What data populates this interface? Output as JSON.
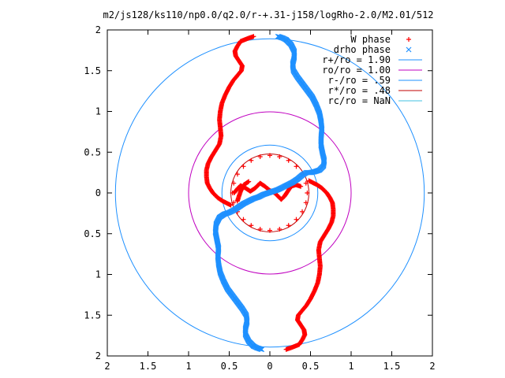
{
  "chart_data": {
    "type": "scatter",
    "title": "m2/js128/ks110/np0.0/q2.0/r-+.31-j158/logRho-2.0/M2.01/512",
    "xlabel": "",
    "ylabel": "",
    "xlim": [
      -2,
      2
    ],
    "ylim": [
      -2,
      2
    ],
    "x_ticks": [
      {
        "value": -2,
        "label": "2"
      },
      {
        "value": -1.5,
        "label": "1.5"
      },
      {
        "value": -1,
        "label": "1"
      },
      {
        "value": -0.5,
        "label": "0.5"
      },
      {
        "value": 0,
        "label": "0"
      },
      {
        "value": 0.5,
        "label": "0.5"
      },
      {
        "value": 1,
        "label": "1"
      },
      {
        "value": 1.5,
        "label": "1.5"
      },
      {
        "value": 2,
        "label": "2"
      }
    ],
    "y_ticks": [
      {
        "value": 2,
        "label": "2"
      },
      {
        "value": 1.5,
        "label": "1.5"
      },
      {
        "value": 1,
        "label": "1"
      },
      {
        "value": 0.5,
        "label": "0.5"
      },
      {
        "value": 0,
        "label": "0"
      },
      {
        "value": -0.5,
        "label": "0.5"
      },
      {
        "value": -1,
        "label": "1"
      },
      {
        "value": -1.5,
        "label": "1.5"
      },
      {
        "value": -2,
        "label": "2"
      }
    ],
    "grid": false,
    "legend_position": "top-right",
    "series": [
      {
        "name": "W phase",
        "marker": "plus",
        "color": "#ff0000",
        "arms": [
          [
            [
              0.36,
              -1.86
            ],
            [
              0.4,
              -1.8
            ],
            [
              0.43,
              -1.74
            ],
            [
              0.42,
              -1.68
            ],
            [
              0.38,
              -1.62
            ],
            [
              0.34,
              -1.56
            ],
            [
              0.35,
              -1.5
            ],
            [
              0.4,
              -1.44
            ],
            [
              0.45,
              -1.38
            ],
            [
              0.5,
              -1.3
            ],
            [
              0.55,
              -1.2
            ],
            [
              0.59,
              -1.1
            ],
            [
              0.61,
              -1.0
            ],
            [
              0.62,
              -0.9
            ],
            [
              0.61,
              -0.8
            ],
            [
              0.6,
              -0.7
            ],
            [
              0.62,
              -0.6
            ],
            [
              0.67,
              -0.52
            ],
            [
              0.72,
              -0.44
            ],
            [
              0.76,
              -0.36
            ],
            [
              0.78,
              -0.28
            ],
            [
              0.78,
              -0.2
            ],
            [
              0.77,
              -0.12
            ],
            [
              0.74,
              -0.06
            ],
            [
              0.7,
              0.0
            ],
            [
              0.64,
              0.06
            ],
            [
              0.58,
              0.1
            ],
            [
              0.52,
              0.13
            ],
            [
              0.48,
              0.15
            ]
          ],
          [
            [
              -0.36,
              1.86
            ],
            [
              -0.4,
              1.8
            ],
            [
              -0.43,
              1.74
            ],
            [
              -0.42,
              1.68
            ],
            [
              -0.38,
              1.62
            ],
            [
              -0.34,
              1.56
            ],
            [
              -0.35,
              1.5
            ],
            [
              -0.4,
              1.44
            ],
            [
              -0.45,
              1.38
            ],
            [
              -0.5,
              1.3
            ],
            [
              -0.55,
              1.2
            ],
            [
              -0.59,
              1.1
            ],
            [
              -0.61,
              1.0
            ],
            [
              -0.62,
              0.9
            ],
            [
              -0.61,
              0.8
            ],
            [
              -0.6,
              0.7
            ],
            [
              -0.62,
              0.6
            ],
            [
              -0.67,
              0.52
            ],
            [
              -0.72,
              0.44
            ],
            [
              -0.76,
              0.36
            ],
            [
              -0.78,
              0.28
            ],
            [
              -0.78,
              0.2
            ],
            [
              -0.77,
              0.12
            ],
            [
              -0.74,
              0.06
            ],
            [
              -0.7,
              0.0
            ],
            [
              -0.64,
              -0.06
            ],
            [
              -0.58,
              -0.1
            ],
            [
              -0.52,
              -0.13
            ],
            [
              -0.48,
              -0.15
            ]
          ],
          [
            [
              0.2,
              -1.92
            ],
            [
              0.26,
              -1.9
            ],
            [
              0.31,
              -1.88
            ],
            [
              0.36,
              -1.86
            ]
          ],
          [
            [
              -0.2,
              1.92
            ],
            [
              -0.26,
              1.9
            ],
            [
              -0.31,
              1.88
            ],
            [
              -0.36,
              1.86
            ]
          ],
          [
            [
              -0.44,
              0.0
            ],
            [
              -0.4,
              0.05
            ],
            [
              -0.36,
              0.09
            ],
            [
              -0.3,
              0.06
            ],
            [
              -0.24,
              0.02
            ],
            [
              -0.18,
              0.06
            ],
            [
              -0.12,
              0.12
            ],
            [
              -0.06,
              0.08
            ],
            [
              0.0,
              0.03
            ],
            [
              0.06,
              0.0
            ],
            [
              0.1,
              -0.04
            ],
            [
              0.14,
              -0.08
            ],
            [
              0.18,
              -0.04
            ],
            [
              0.22,
              0.02
            ],
            [
              0.26,
              0.08
            ],
            [
              0.32,
              0.1
            ],
            [
              0.38,
              0.08
            ]
          ],
          [
            [
              -0.4,
              -0.1
            ],
            [
              -0.36,
              0.02
            ],
            [
              -0.32,
              0.1
            ],
            [
              -0.26,
              0.14
            ]
          ]
        ],
        "ring": {
          "r": 0.46,
          "points": 24
        }
      },
      {
        "name": "drho phase",
        "marker": "cross",
        "color": "#1e90ff",
        "arms": [
          [
            [
              0.2,
              1.88
            ],
            [
              0.26,
              1.82
            ],
            [
              0.3,
              1.74
            ],
            [
              0.3,
              1.66
            ],
            [
              0.28,
              1.58
            ],
            [
              0.29,
              1.5
            ],
            [
              0.34,
              1.42
            ],
            [
              0.4,
              1.34
            ],
            [
              0.46,
              1.26
            ],
            [
              0.52,
              1.18
            ],
            [
              0.57,
              1.08
            ],
            [
              0.61,
              0.98
            ],
            [
              0.63,
              0.88
            ],
            [
              0.64,
              0.78
            ],
            [
              0.63,
              0.68
            ],
            [
              0.63,
              0.58
            ],
            [
              0.65,
              0.48
            ],
            [
              0.67,
              0.4
            ],
            [
              0.66,
              0.33
            ],
            [
              0.61,
              0.28
            ],
            [
              0.55,
              0.26
            ],
            [
              0.5,
              0.25
            ],
            [
              0.45,
              0.25
            ],
            [
              0.4,
              0.22
            ],
            [
              0.34,
              0.17
            ],
            [
              0.28,
              0.13
            ],
            [
              0.22,
              0.1
            ],
            [
              0.16,
              0.07
            ],
            [
              0.1,
              0.04
            ],
            [
              0.04,
              0.02
            ],
            [
              -0.02,
              0.0
            ],
            [
              -0.08,
              -0.02
            ],
            [
              -0.14,
              -0.05
            ],
            [
              -0.2,
              -0.07
            ],
            [
              -0.26,
              -0.1
            ],
            [
              -0.32,
              -0.13
            ],
            [
              -0.38,
              -0.17
            ],
            [
              -0.44,
              -0.21
            ],
            [
              -0.5,
              -0.24
            ],
            [
              -0.56,
              -0.26
            ],
            [
              -0.62,
              -0.3
            ],
            [
              -0.66,
              -0.38
            ],
            [
              -0.67,
              -0.48
            ],
            [
              -0.65,
              -0.58
            ],
            [
              -0.63,
              -0.68
            ],
            [
              -0.64,
              -0.78
            ],
            [
              -0.63,
              -0.88
            ],
            [
              -0.61,
              -0.98
            ],
            [
              -0.57,
              -1.08
            ],
            [
              -0.52,
              -1.18
            ],
            [
              -0.46,
              -1.26
            ],
            [
              -0.4,
              -1.34
            ],
            [
              -0.34,
              -1.42
            ],
            [
              -0.29,
              -1.5
            ],
            [
              -0.28,
              -1.58
            ],
            [
              -0.3,
              -1.66
            ],
            [
              -0.3,
              -1.74
            ],
            [
              -0.26,
              -1.82
            ],
            [
              -0.2,
              -1.88
            ]
          ],
          [
            [
              0.2,
              1.88
            ],
            [
              0.16,
              1.9
            ],
            [
              0.1,
              1.92
            ]
          ],
          [
            [
              -0.2,
              -1.88
            ],
            [
              -0.16,
              -1.9
            ],
            [
              -0.1,
              -1.92
            ]
          ]
        ]
      }
    ],
    "circles": [
      {
        "name": "r+/ro = 1.90",
        "r": 1.9,
        "color": "#1e90ff"
      },
      {
        "name": "ro/ro = 1.00",
        "r": 1.0,
        "color": "#c000c0"
      },
      {
        "name": "r-/ro = .59",
        "r": 0.59,
        "color": "#1e90ff"
      },
      {
        "name": "r*/ro = .48",
        "r": 0.48,
        "color": "#c00000"
      },
      {
        "name": "rc/ro = NaN",
        "r": null,
        "color": "#40c0e0"
      }
    ]
  }
}
